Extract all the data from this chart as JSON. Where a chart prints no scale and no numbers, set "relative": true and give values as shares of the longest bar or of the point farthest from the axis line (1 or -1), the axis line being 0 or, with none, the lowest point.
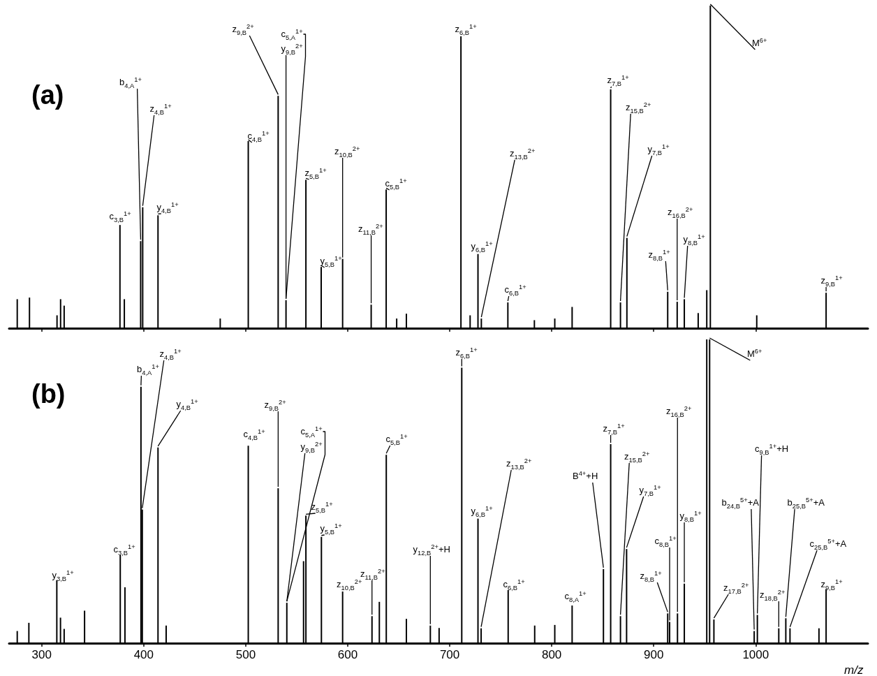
{
  "chart_data": [
    {
      "type": "bar",
      "title": "(a)",
      "relative": true,
      "color": "#000000",
      "xlim": [
        268,
        1110
      ],
      "xticks": [
        300,
        400,
        500,
        600,
        700,
        800,
        900,
        1000
      ],
      "tick_labels": false,
      "x": [
        276,
        288,
        315,
        318.5,
        322,
        376.7,
        381,
        397,
        399,
        414,
        475,
        502.5,
        531.8,
        539.5,
        559,
        574,
        595,
        623,
        637.7,
        648,
        657.5,
        711,
        720,
        727.7,
        731,
        757,
        783,
        803,
        820,
        857.8,
        867.4,
        873.7,
        913.7,
        923,
        930,
        943.6,
        952,
        955.5,
        1001,
        1069
      ],
      "values": [
        0.09,
        0.095,
        0.04,
        0.09,
        0.07,
        0.32,
        0.09,
        0.27,
        0.375,
        0.35,
        0.03,
        0.58,
        0.72,
        0.087,
        0.46,
        0.19,
        0.215,
        0.073,
        0.43,
        0.03,
        0.045,
        0.905,
        0.04,
        0.23,
        0.03,
        0.08,
        0.025,
        0.03,
        0.066,
        0.74,
        0.08,
        0.28,
        0.113,
        0.082,
        0.09,
        0.047,
        0.118,
        1,
        0.04,
        0.11
      ],
      "annotations": [
        {
          "text": "c$_{3,B}$$^{1+}$",
          "x": 376.7,
          "y": 0.32
        },
        {
          "text": "b$_{4,A}$$^{1+}$",
          "x": 397,
          "y": 0.27
        },
        {
          "text": "z$_{4,B}$$^{1+}$",
          "x": 399,
          "y": 0.375
        },
        {
          "text": "y$_{4,B}$$^{1+}$",
          "x": 414,
          "y": 0.35
        },
        {
          "text": "c$_{4,B}$$^{1+}$",
          "x": 502.5,
          "y": 0.58
        },
        {
          "text": "z$_{9,B}$$^{2+}$",
          "x": 531.8,
          "y": 0.72
        },
        {
          "text": "y$_{9,B}$$^{2+}$",
          "x": 539.5,
          "y": 0.087
        },
        {
          "text": "c$_{5,A}$$^{1+}$",
          "x": 539.5,
          "y": 0.087
        },
        {
          "text": "z$_{5,B}$$^{1+}$",
          "x": 559,
          "y": 0.46
        },
        {
          "text": "y$_{5,B}$$^{1+}$",
          "x": 574,
          "y": 0.19
        },
        {
          "text": "z$_{10,B}$$^{2+}$",
          "x": 595,
          "y": 0.215
        },
        {
          "text": "z$_{11,B}$$^{2+}$",
          "x": 623,
          "y": 0.073
        },
        {
          "text": "c$_{5,B}$$^{1+}$",
          "x": 637.7,
          "y": 0.43
        },
        {
          "text": "z$_{6,B}$$^{1+}$",
          "x": 711,
          "y": 0.905
        },
        {
          "text": "y$_{6,B}$$^{1+}$",
          "x": 727.7,
          "y": 0.23
        },
        {
          "text": "z$_{13,B}$$^{2+}$",
          "x": 731,
          "y": 0.03
        },
        {
          "text": "c$_{6,B}$$^{1+}$",
          "x": 757,
          "y": 0.08
        },
        {
          "text": "z$_{7,B}$$^{1+}$",
          "x": 857.8,
          "y": 0.74
        },
        {
          "text": "z$_{15,B}$$^{2+}$",
          "x": 867.4,
          "y": 0.08
        },
        {
          "text": "y$_{7,B}$$^{1+}$",
          "x": 873.7,
          "y": 0.28
        },
        {
          "text": "z$_{8,B}$$^{1+}$",
          "x": 913.7,
          "y": 0.113
        },
        {
          "text": "z$_{16,B}$$^{2+}$",
          "x": 923,
          "y": 0.082
        },
        {
          "text": "y$_{8,B}$$^{1+}$",
          "x": 930,
          "y": 0.09
        },
        {
          "text": "M$^{6+}$",
          "x": 955.5,
          "y": 1
        },
        {
          "text": "z$_{9,B}$$^{1+}$",
          "x": 1069,
          "y": 0.11
        }
      ]
    },
    {
      "type": "bar",
      "title": "(b)",
      "relative": true,
      "color": "#000000",
      "xlabel": "m/z",
      "xlim": [
        268,
        1110
      ],
      "xticks": [
        300,
        400,
        500,
        600,
        700,
        800,
        900,
        1000
      ],
      "tick_labels": "x",
      "x": [
        276,
        287.4,
        314.8,
        318.4,
        322,
        342,
        377,
        381.6,
        397.3,
        398.6,
        414,
        422,
        502.5,
        531.8,
        540.3,
        556.7,
        559,
        574.2,
        595,
        623.8,
        631,
        637.8,
        657.5,
        681,
        689.6,
        711.8,
        727.7,
        730.8,
        757.3,
        783.3,
        803,
        820,
        850.7,
        857.8,
        867.4,
        873.4,
        913.7,
        915.6,
        923.3,
        930,
        952,
        954.8,
        959,
        998.5,
        1001.6,
        1022.6,
        1029.5,
        1033.6,
        1062,
        1069
      ],
      "values": [
        0.04,
        0.067,
        0.207,
        0.084,
        0.047,
        0.107,
        0.29,
        0.184,
        0.844,
        0.44,
        0.644,
        0.058,
        0.65,
        0.51,
        0.133,
        0.27,
        0.42,
        0.35,
        0.17,
        0.089,
        0.136,
        0.62,
        0.08,
        0.058,
        0.05,
        0.907,
        0.41,
        0.049,
        0.175,
        0.058,
        0.06,
        0.124,
        0.244,
        0.655,
        0.089,
        0.31,
        0.098,
        0.07,
        0.098,
        0.196,
        1,
        1,
        0.078,
        0.04,
        0.093,
        0.049,
        0.082,
        0.049,
        0.049,
        0.178
      ],
      "annotations": [
        {
          "text": "y$_{3,B}$$^{1+}$",
          "x": 314.8,
          "y": 0.207
        },
        {
          "text": "c$_{3,B}$$^{1+}$",
          "x": 377,
          "y": 0.29
        },
        {
          "text": "b$_{4,A}$$^{1+}$",
          "x": 397.3,
          "y": 0.844
        },
        {
          "text": "z$_{4,B}$$^{1+}$",
          "x": 398.6,
          "y": 0.44
        },
        {
          "text": "y$_{4,B}$$^{1+}$",
          "x": 414,
          "y": 0.644
        },
        {
          "text": "c$_{4,B}$$^{1+}$",
          "x": 502.5,
          "y": 0.65
        },
        {
          "text": "z$_{9,B}$$^{2+}$",
          "x": 531.8,
          "y": 0.51
        },
        {
          "text": "y$_{9,B}$$^{2+}$",
          "x": 540.3,
          "y": 0.133
        },
        {
          "text": "c$_{5,A}$$^{1+}$",
          "x": 540.3,
          "y": 0.133
        },
        {
          "text": "z$_{5,B}$$^{1+}$",
          "x": 559,
          "y": 0.42
        },
        {
          "text": "y$_{5,B}$$^{1+}$",
          "x": 574.2,
          "y": 0.35
        },
        {
          "text": "z$_{10,B}$$^{2+}$",
          "x": 595,
          "y": 0.17
        },
        {
          "text": "z$_{11,B}$$^{2+}$",
          "x": 623.8,
          "y": 0.089
        },
        {
          "text": "c$_{5,B}$$^{1+}$",
          "x": 637.8,
          "y": 0.62
        },
        {
          "text": "y$_{12,B}$$^{2+}$+H",
          "x": 681,
          "y": 0.058
        },
        {
          "text": "z$_{6,B}$$^{1+}$",
          "x": 711.8,
          "y": 0.907
        },
        {
          "text": "y$_{6,B}$$^{1+}$",
          "x": 727.7,
          "y": 0.41
        },
        {
          "text": "z$_{13,B}$$^{2+}$",
          "x": 730.8,
          "y": 0.049
        },
        {
          "text": "c$_{6,B}$$^{1+}$",
          "x": 757.3,
          "y": 0.175
        },
        {
          "text": "c$_{8,A}$$^{1+}$",
          "x": 820,
          "y": 0.124
        },
        {
          "text": "B$^{4+}$+H",
          "x": 850.7,
          "y": 0.244
        },
        {
          "text": "z$_{7,B}$$^{1+}$",
          "x": 857.8,
          "y": 0.655
        },
        {
          "text": "z$_{15,B}$$^{2+}$",
          "x": 867.4,
          "y": 0.089
        },
        {
          "text": "y$_{7,B}$$^{1+}$",
          "x": 873.4,
          "y": 0.31
        },
        {
          "text": "z$_{8,B}$$^{1+}$",
          "x": 913.7,
          "y": 0.098
        },
        {
          "text": "c$_{8,B}$$^{1+}$",
          "x": 915.6,
          "y": 0.07
        },
        {
          "text": "z$_{16,B}$$^{2+}$",
          "x": 923.3,
          "y": 0.098
        },
        {
          "text": "y$_{8,B}$$^{1+}$",
          "x": 930,
          "y": 0.196
        },
        {
          "text": "M$^{6+}$",
          "x": 954.8,
          "y": 1
        },
        {
          "text": "z$_{17,B}$$^{2+}$",
          "x": 959,
          "y": 0.078
        },
        {
          "text": "b$_{24,B}$$^{5+}$+A",
          "x": 998.5,
          "y": 0.04
        },
        {
          "text": "c$_{9,B}$$^{1+}$+H",
          "x": 1001.6,
          "y": 0.093
        },
        {
          "text": "z$_{18,B}$$^{2+}$",
          "x": 1022.6,
          "y": 0.049
        },
        {
          "text": "b$_{25,B}$$^{5+}$+A",
          "x": 1029.5,
          "y": 0.082
        },
        {
          "text": "c$_{25,B}$$^{5+}$+A",
          "x": 1033.6,
          "y": 0.049
        },
        {
          "text": "z$_{9,B}$$^{1+}$",
          "x": 1069,
          "y": 0.178
        }
      ]
    }
  ]
}
